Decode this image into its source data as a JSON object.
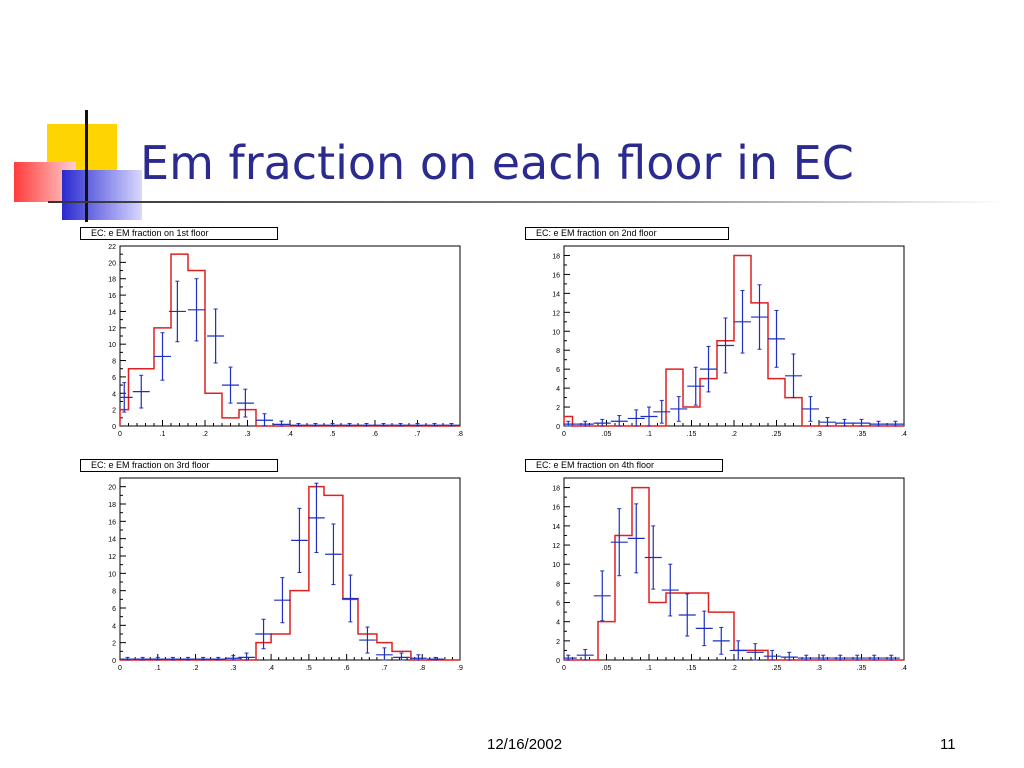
{
  "slide": {
    "title": "Em fraction on each floor in EC",
    "date": "12/16/2002",
    "page": "11"
  },
  "colors": {
    "title": "#2b2b8f",
    "data": "#1f2fbf",
    "mc": "#e02020"
  },
  "chart_data": [
    {
      "type": "histogram",
      "title": "EC: e EM fraction on 1st floor",
      "xlim": [
        0,
        0.8
      ],
      "ylim": [
        0,
        22
      ],
      "xticks": [
        0,
        0.1,
        0.2,
        0.3,
        0.4,
        0.5,
        0.6,
        0.7,
        0.8
      ],
      "yticks": [
        0,
        2,
        4,
        6,
        8,
        10,
        12,
        14,
        16,
        18,
        20,
        22
      ],
      "series": [
        {
          "kind": "step",
          "x_edges": [
            0,
            0.02,
            0.04,
            0.08,
            0.12,
            0.16,
            0.2,
            0.24,
            0.28,
            0.32,
            0.36,
            0.8
          ],
          "values": [
            2,
            7,
            7,
            12,
            21,
            19,
            4,
            1,
            2,
            0,
            0
          ]
        },
        {
          "kind": "errorbar",
          "x": [
            0.01,
            0.05,
            0.1,
            0.135,
            0.18,
            0.225,
            0.26,
            0.295,
            0.34,
            0.38,
            0.42,
            0.46,
            0.5,
            0.54,
            0.58,
            0.62,
            0.66,
            0.7,
            0.74,
            0.78
          ],
          "y": [
            3.5,
            4.2,
            8.5,
            14.0,
            14.2,
            11.0,
            5.0,
            2.8,
            0.7,
            0.2,
            0.1,
            0.1,
            0.1,
            0.1,
            0.1,
            0.1,
            0.1,
            0.1,
            0.1,
            0.1
          ],
          "yerr": [
            1.8,
            2.0,
            2.9,
            3.7,
            3.8,
            3.3,
            2.2,
            1.7,
            0.8,
            0.4,
            0.2,
            0.2,
            0.2,
            0.2,
            0.2,
            0.2,
            0.2,
            0.2,
            0.2,
            0.2
          ],
          "xerr": 0.02
        }
      ]
    },
    {
      "type": "histogram",
      "title": "EC: e EM fraction on 2nd floor",
      "xlim": [
        0,
        0.4
      ],
      "ylim": [
        0,
        19
      ],
      "xticks": [
        0,
        0.05,
        0.1,
        0.15,
        0.2,
        0.25,
        0.3,
        0.35,
        0.4
      ],
      "yticks": [
        0,
        2,
        4,
        6,
        8,
        10,
        12,
        14,
        16,
        18
      ],
      "series": [
        {
          "kind": "step",
          "x_edges": [
            0,
            0.01,
            0.12,
            0.14,
            0.16,
            0.18,
            0.2,
            0.22,
            0.24,
            0.26,
            0.28,
            0.4
          ],
          "values": [
            1,
            0,
            6,
            2,
            5,
            9,
            18,
            13,
            5,
            3,
            0
          ]
        },
        {
          "kind": "errorbar",
          "x": [
            0.005,
            0.025,
            0.045,
            0.065,
            0.085,
            0.1,
            0.115,
            0.135,
            0.155,
            0.17,
            0.19,
            0.21,
            0.23,
            0.25,
            0.27,
            0.29,
            0.31,
            0.33,
            0.35,
            0.37,
            0.39
          ],
          "y": [
            0.2,
            0.2,
            0.3,
            0.5,
            0.8,
            1.0,
            1.5,
            1.8,
            4.2,
            6.0,
            8.5,
            11.0,
            11.5,
            9.2,
            5.3,
            1.8,
            0.4,
            0.3,
            0.3,
            0.2,
            0.2
          ],
          "yerr": [
            0.3,
            0.3,
            0.4,
            0.6,
            0.9,
            1.0,
            1.2,
            1.3,
            2.0,
            2.4,
            2.9,
            3.3,
            3.4,
            3.0,
            2.3,
            1.3,
            0.5,
            0.4,
            0.4,
            0.3,
            0.3
          ],
          "xerr": 0.01
        }
      ]
    },
    {
      "type": "histogram",
      "title": "EC: e EM fraction on 3rd floor",
      "xlim": [
        0,
        0.9
      ],
      "ylim": [
        0,
        21
      ],
      "xticks": [
        0,
        0.1,
        0.2,
        0.3,
        0.4,
        0.5,
        0.6,
        0.7,
        0.8,
        0.9
      ],
      "yticks": [
        0,
        2,
        4,
        6,
        8,
        10,
        12,
        14,
        16,
        18,
        20
      ],
      "series": [
        {
          "kind": "step",
          "x_edges": [
            0,
            0.36,
            0.4,
            0.45,
            0.5,
            0.54,
            0.59,
            0.63,
            0.68,
            0.72,
            0.77,
            0.9
          ],
          "values": [
            0,
            2,
            3,
            8,
            20,
            19,
            7,
            3,
            2,
            1,
            0
          ]
        },
        {
          "kind": "errorbar",
          "x": [
            0.02,
            0.06,
            0.1,
            0.14,
            0.18,
            0.22,
            0.26,
            0.3,
            0.335,
            0.38,
            0.43,
            0.475,
            0.52,
            0.565,
            0.61,
            0.655,
            0.7,
            0.745,
            0.79,
            0.835
          ],
          "y": [
            0.1,
            0.1,
            0.1,
            0.1,
            0.1,
            0.1,
            0.1,
            0.2,
            0.3,
            3.0,
            6.9,
            13.8,
            16.4,
            12.2,
            7.1,
            2.3,
            0.6,
            0.3,
            0.2,
            0.1
          ],
          "yerr": [
            0.2,
            0.2,
            0.2,
            0.2,
            0.2,
            0.2,
            0.2,
            0.3,
            0.5,
            1.7,
            2.6,
            3.7,
            4.0,
            3.5,
            2.7,
            1.5,
            0.8,
            0.5,
            0.4,
            0.2
          ],
          "xerr": 0.022
        }
      ]
    },
    {
      "type": "histogram",
      "title": "EC: e EM fraction on 4th floor",
      "xlim": [
        0,
        0.4
      ],
      "ylim": [
        0,
        19
      ],
      "xticks": [
        0,
        0.05,
        0.1,
        0.15,
        0.2,
        0.25,
        0.3,
        0.35,
        0.4
      ],
      "yticks": [
        0,
        2,
        4,
        6,
        8,
        10,
        12,
        14,
        16,
        18
      ],
      "series": [
        {
          "kind": "step",
          "x_edges": [
            0,
            0.04,
            0.06,
            0.08,
            0.1,
            0.12,
            0.14,
            0.17,
            0.2,
            0.24,
            0.4
          ],
          "values": [
            0,
            4,
            13,
            18,
            6,
            7,
            7,
            5,
            1,
            0
          ]
        },
        {
          "kind": "errorbar",
          "x": [
            0.005,
            0.025,
            0.045,
            0.065,
            0.085,
            0.105,
            0.125,
            0.145,
            0.165,
            0.185,
            0.205,
            0.225,
            0.245,
            0.265,
            0.285,
            0.305,
            0.325,
            0.345,
            0.365,
            0.385
          ],
          "y": [
            0.2,
            0.5,
            6.7,
            12.3,
            12.7,
            10.7,
            7.3,
            4.7,
            3.3,
            2.0,
            1.0,
            0.8,
            0.4,
            0.3,
            0.2,
            0.2,
            0.2,
            0.2,
            0.2,
            0.2
          ],
          "yerr": [
            0.3,
            0.6,
            2.6,
            3.5,
            3.6,
            3.3,
            2.7,
            2.2,
            1.8,
            1.4,
            1.0,
            0.9,
            0.6,
            0.5,
            0.3,
            0.3,
            0.3,
            0.3,
            0.3,
            0.3
          ],
          "xerr": 0.01
        }
      ]
    }
  ]
}
